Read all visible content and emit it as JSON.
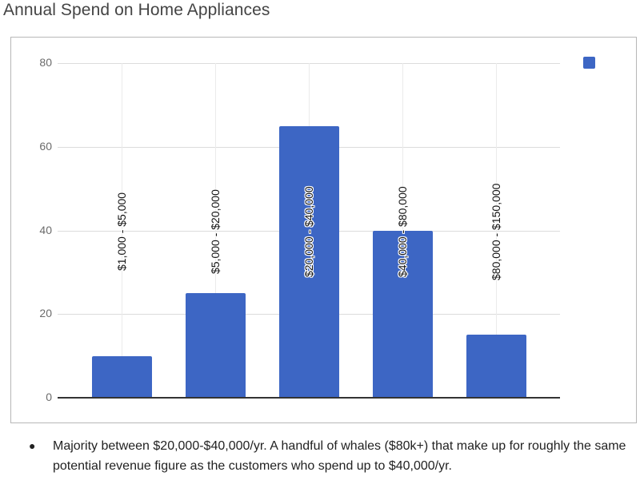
{
  "title": "Annual Spend on Home Appliances",
  "colors": {
    "bar": "#3d66c4",
    "gridline": "#dcdcdc",
    "baseline": "#333333",
    "frame": "#b7b7b7"
  },
  "legend": {
    "entries": [
      {
        "label": "",
        "color": "#3d66c4"
      }
    ],
    "position": "top-right"
  },
  "y_axis": {
    "ticks": [
      "80",
      "60",
      "40",
      "20",
      "0"
    ]
  },
  "bars": [
    {
      "label": "$1,000 - $5,000",
      "value": 10
    },
    {
      "label": "$5,000 - $20,000",
      "value": 25
    },
    {
      "label": "$20,000 - $40,000",
      "value": 65
    },
    {
      "label": "$40,000 - $80,000",
      "value": 40
    },
    {
      "label": "$80,000 - $150,000",
      "value": 15
    }
  ],
  "note": {
    "bullet": "●",
    "text": "Majority between $20,000-$40,000/yr.  A handful of whales ($80k+) that make up for roughly the same potential revenue figure as the customers who spend up to $40,000/yr."
  },
  "chart_data": {
    "type": "bar",
    "title": "Annual Spend on Home Appliances",
    "categories": [
      "$1,000 - $5,000",
      "$5,000 - $20,000",
      "$20,000 - $40,000",
      "$40,000 - $80,000",
      "$80,000 - $150,000"
    ],
    "values": [
      10,
      25,
      65,
      40,
      15
    ],
    "series": [
      {
        "name": "",
        "values": [
          10,
          25,
          65,
          40,
          15
        ],
        "color": "#3d66c4"
      }
    ],
    "xlabel": "",
    "ylabel": "",
    "ylim": [
      0,
      80
    ],
    "yticks": [
      0,
      20,
      40,
      60,
      80
    ],
    "grid": true,
    "legend_position": "top-right",
    "annotations": [
      "Category labels drawn vertically inside/over each bar"
    ]
  }
}
